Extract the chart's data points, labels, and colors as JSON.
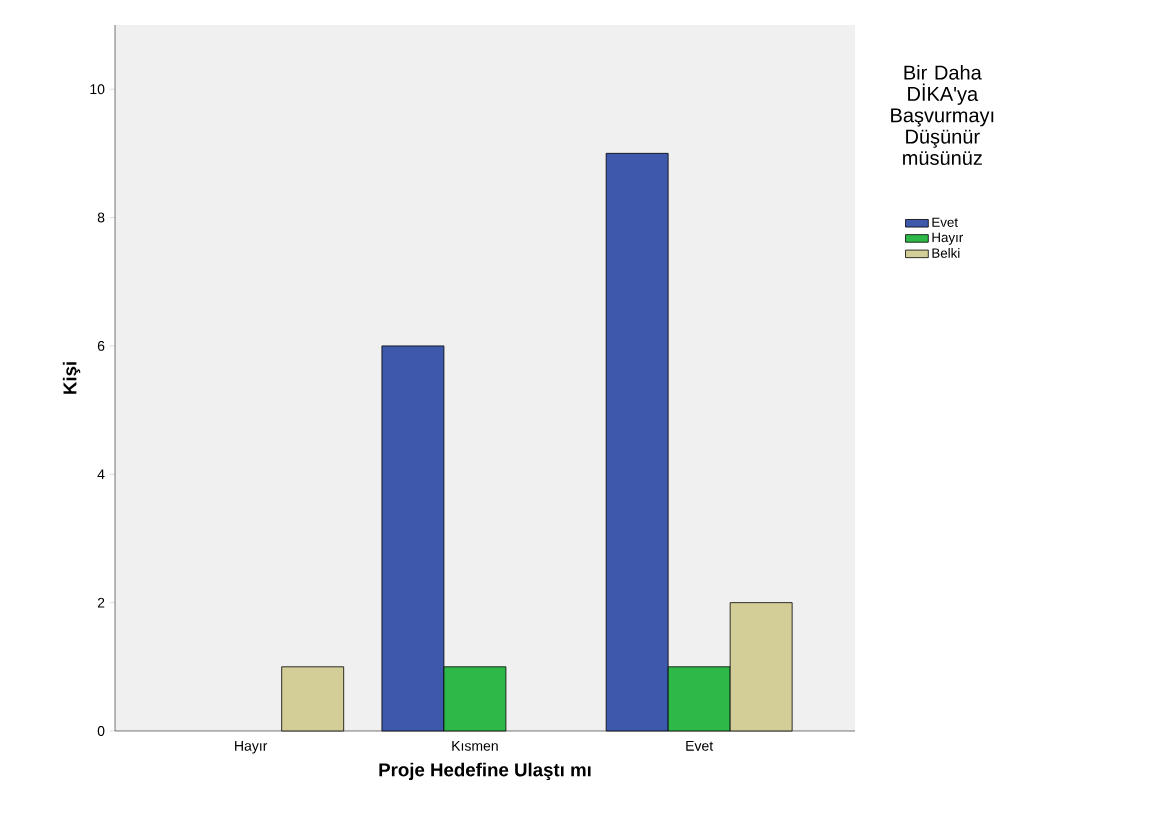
{
  "chart_data": {
    "type": "bar",
    "xlabel": "Proje Hedefine Ulaştı mı",
    "ylabel": "Kişi",
    "legend_title": "Bir Daha DİKA'ya Başvurmayı Düşünür müsünüz",
    "categories": [
      "Hayır",
      "Kısmen",
      "Evet"
    ],
    "series": [
      {
        "name": "Evet",
        "color": "#3e58ac",
        "values": [
          null,
          6,
          9
        ]
      },
      {
        "name": "Hayır",
        "color": "#2eb848",
        "values": [
          null,
          1,
          1
        ]
      },
      {
        "name": "Belki",
        "color": "#d3ce97",
        "values": [
          1,
          null,
          2
        ]
      }
    ],
    "ylim": [
      0,
      11
    ],
    "yticks": [
      0,
      2,
      4,
      6,
      8,
      10
    ],
    "legend": "right"
  }
}
